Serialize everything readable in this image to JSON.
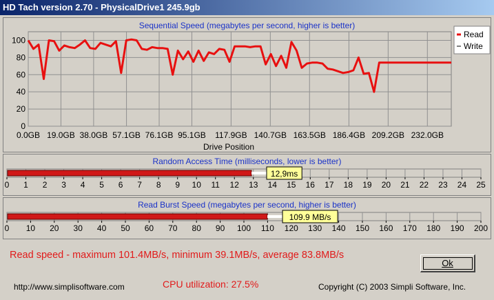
{
  "window": {
    "title": "HD Tach version 2.70 - PhysicalDrive1 245.9gb"
  },
  "sequential": {
    "title": "Sequential Speed (megabytes per second, higher is better)",
    "xlabel": "Drive Position",
    "legend": {
      "read": "Read",
      "write": "Write"
    },
    "colors": {
      "read": "#e81010",
      "write": "#ffffff"
    }
  },
  "chart_data": {
    "type": "line",
    "title": "Sequential Speed (megabytes per second, higher is better)",
    "xlabel": "Drive Position",
    "ylabel": "",
    "ylim": [
      0,
      110
    ],
    "yticks": [
      0,
      20,
      40,
      60,
      80,
      100
    ],
    "xticks": [
      "0.0GB",
      "19.0GB",
      "38.0GB",
      "57.1GB",
      "76.1GB",
      "95.1GB",
      "117.9GB",
      "140.7GB",
      "163.5GB",
      "186.4GB",
      "209.2GB",
      "232.0GB"
    ],
    "xtick_values": [
      0.0,
      19.0,
      38.0,
      57.1,
      76.1,
      95.1,
      117.9,
      140.7,
      163.5,
      186.4,
      209.2,
      232.0
    ],
    "xlim": [
      0,
      245.9
    ],
    "grid": true,
    "legend_position": "right",
    "series": [
      {
        "name": "Read",
        "x": [
          0,
          3,
          6,
          9,
          12,
          15,
          18,
          21,
          24,
          27,
          30,
          33,
          36,
          39,
          42,
          45,
          48,
          51,
          54,
          57,
          60,
          63,
          66,
          69,
          72,
          75,
          78,
          81,
          84,
          87,
          90,
          93,
          96,
          99,
          102,
          105,
          108,
          111,
          114,
          117,
          120,
          123,
          126,
          129,
          132,
          135,
          138,
          141,
          144,
          147,
          150,
          153,
          156,
          159,
          162,
          165,
          168,
          171,
          174,
          177,
          180,
          183,
          186,
          189,
          192,
          195,
          198,
          201,
          204,
          207,
          210,
          213,
          216,
          219,
          222,
          225,
          228,
          231,
          234,
          237,
          240,
          243,
          245.9
        ],
        "values": [
          100,
          90,
          95,
          55,
          100,
          99,
          88,
          94,
          92,
          91,
          95,
          100,
          91,
          90,
          97,
          95,
          93,
          99,
          62,
          100,
          101,
          100,
          90,
          89,
          92,
          91,
          91,
          90,
          60,
          88,
          78,
          87,
          75,
          88,
          76,
          86,
          84,
          90,
          89,
          75,
          93,
          93,
          93,
          92,
          93,
          93,
          72,
          84,
          70,
          82,
          68,
          98,
          88,
          68,
          73,
          74,
          74,
          73,
          67,
          66,
          64,
          62,
          63,
          65,
          80,
          61,
          62,
          40,
          74,
          74,
          74,
          74,
          74,
          74,
          74,
          74,
          74,
          74,
          74,
          74,
          74,
          74,
          74
        ]
      }
    ]
  },
  "access": {
    "title": "Random Access Time (milliseconds, lower is better)",
    "value": 12.9,
    "value_label": "12,9ms",
    "max": 25,
    "ticks": [
      "0",
      "1",
      "2",
      "3",
      "4",
      "5",
      "6",
      "7",
      "8",
      "9",
      "10",
      "11",
      "12",
      "13",
      "14",
      "15",
      "16",
      "17",
      "18",
      "19",
      "20",
      "21",
      "22",
      "23",
      "24",
      "25"
    ]
  },
  "burst": {
    "title": "Read Burst Speed (megabytes per second, higher is better)",
    "value": 109.9,
    "value_label": "109.9 MB/s",
    "max": 200,
    "ticks": [
      "0",
      "10",
      "20",
      "30",
      "40",
      "50",
      "60",
      "70",
      "80",
      "90",
      "100",
      "110",
      "120",
      "130",
      "140",
      "150",
      "160",
      "170",
      "180",
      "190",
      "200"
    ]
  },
  "status": {
    "summary": "Read speed - maximum 101.4MB/s, minimum 39.1MB/s, average 83.8MB/s",
    "cpu": "CPU utilization: 27.5%"
  },
  "footer": {
    "url": "http://www.simplisoftware.com",
    "copyright": "Copyright (C) 2003 Simpli Software, Inc."
  },
  "buttons": {
    "ok": "Ok"
  }
}
